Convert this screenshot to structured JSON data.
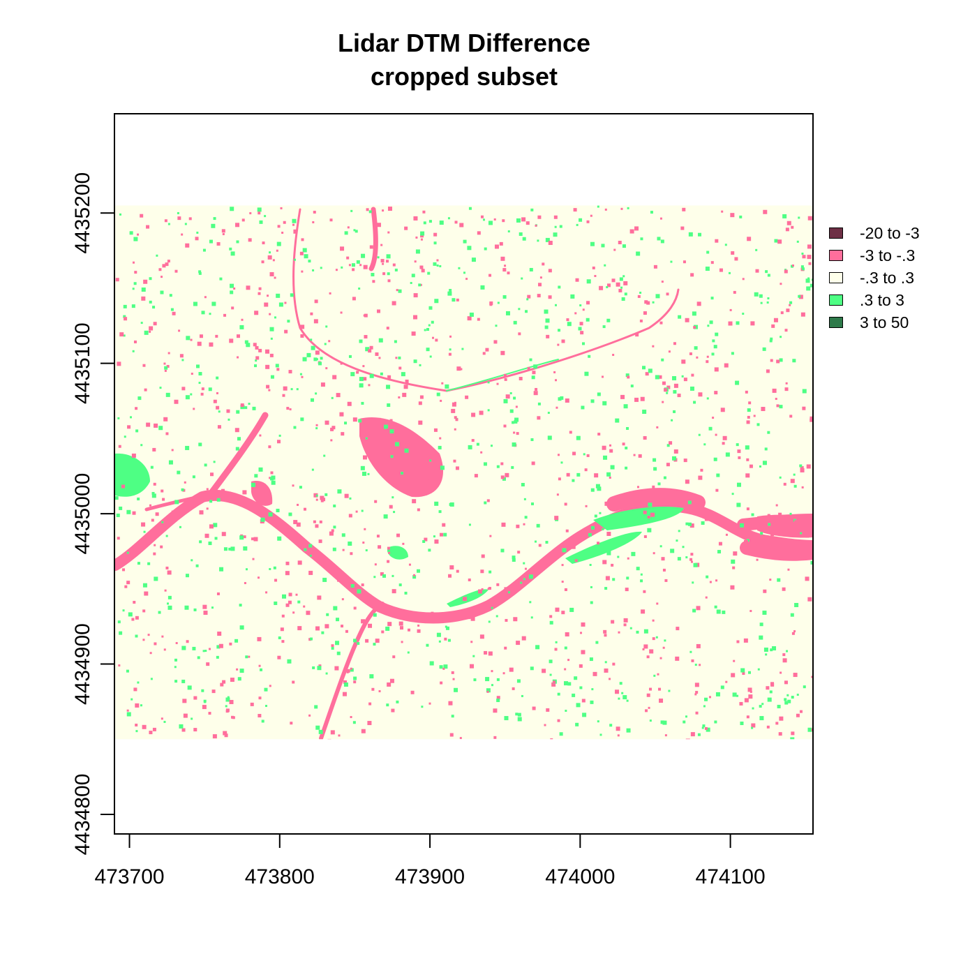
{
  "map": {
    "title_line1": "Lidar DTM Difference",
    "title_line2": "cropped subset",
    "x_ticks": [
      "473700",
      "473800",
      "473900",
      "474000",
      "474100"
    ],
    "y_ticks": [
      "4434800",
      "4434900",
      "4435000",
      "4435100",
      "4435200"
    ],
    "x_range": [
      473690,
      474155
    ],
    "y_range": [
      4434787,
      4435266
    ],
    "raster_extent": {
      "x": [
        473690,
        474155
      ],
      "y": [
        4434850,
        4435205
      ]
    },
    "colors": {
      "background": "#FEFFEA",
      "negative_small": "#FF6E9C",
      "positive_small": "#4EFF84",
      "negative_large": "#6E2F45",
      "positive_large": "#2E7A4A"
    },
    "legend": [
      {
        "label": "-20 to -3",
        "color": "#6E2F45"
      },
      {
        "label": "-3 to -.3",
        "color": "#FF6E9C"
      },
      {
        "label": "-.3 to .3",
        "color": "#FEFFEA"
      },
      {
        "label": ".3 to 3",
        "color": "#4EFF84"
      },
      {
        "label": "3 to 50",
        "color": "#2E7A4A"
      }
    ]
  }
}
